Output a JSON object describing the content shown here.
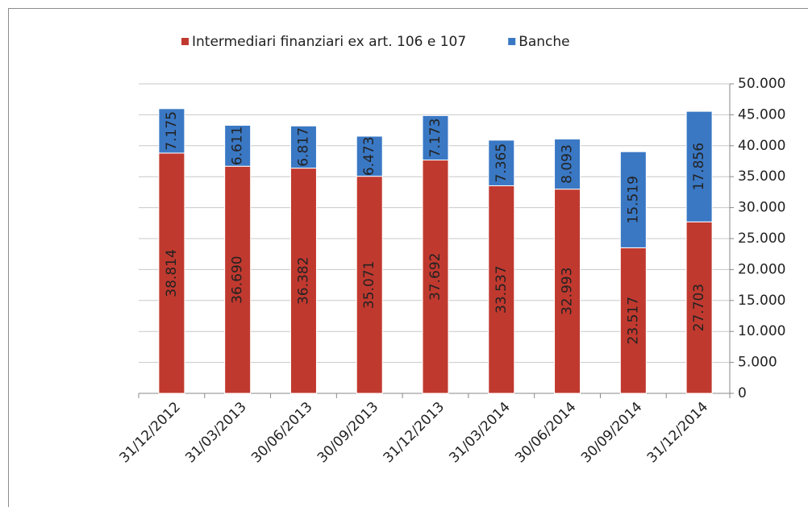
{
  "chart_data": {
    "type": "stacked_bar",
    "categories": [
      "31/12/2012",
      "31/03/2013",
      "30/06/2013",
      "30/09/2013",
      "31/12/2013",
      "31/03/2014",
      "30/06/2014",
      "30/09/2014",
      "31/12/2014"
    ],
    "series": [
      {
        "name": "Intermediari finanziari ex art. 106 e 107",
        "color": "#c0392f",
        "values": [
          38814,
          36690,
          36382,
          35071,
          37692,
          33537,
          32993,
          23517,
          27703
        ],
        "value_labels": [
          "38.814",
          "36.690",
          "36.382",
          "35.071",
          "37.692",
          "33.537",
          "32.993",
          "23.517",
          "27.703"
        ]
      },
      {
        "name": "Banche",
        "color": "#3a78c4",
        "values": [
          7175,
          6611,
          6817,
          6473,
          7173,
          7365,
          8093,
          15519,
          17856
        ],
        "value_labels": [
          "7.175",
          "6.611",
          "6.817",
          "6.473",
          "7.173",
          "7.365",
          "8.093",
          "15.519",
          "17.856"
        ]
      }
    ],
    "ylim": [
      0,
      50000
    ],
    "yticks": [
      0,
      {
        "value": 5000,
        "label": "5.000"
      },
      {
        "value": 10000,
        "label": "10.000"
      },
      {
        "value": 15000,
        "label": "15.000"
      },
      {
        "value": 20000,
        "label": "20.000"
      },
      {
        "value": 25000,
        "label": "25.000"
      },
      {
        "value": 30000,
        "label": "30.000"
      },
      {
        "value": 35000,
        "label": "35.000"
      },
      {
        "value": 40000,
        "label": "40.000"
      },
      {
        "value": 45000,
        "label": "45.000"
      },
      {
        "value": 50000,
        "label": "50.000"
      }
    ],
    "y_axis_side": "right",
    "grid": true,
    "legend": "top"
  }
}
